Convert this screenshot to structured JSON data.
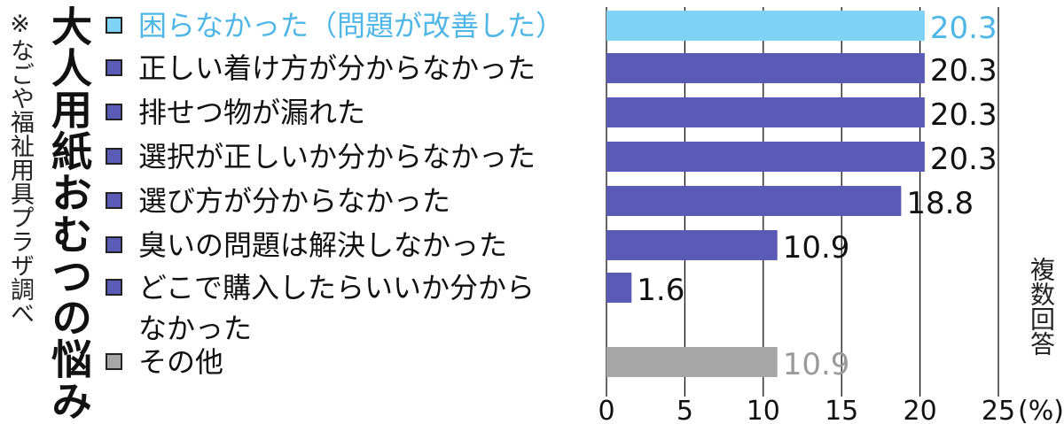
{
  "title": "大人用紙おむつの悩み",
  "source": "※なごや福祉用具プラザ調べ",
  "note": "複数回答",
  "colors": {
    "highlight": "#7fd3f7",
    "main": "#5a5bb7",
    "other": "#a6a6a6",
    "grid": "#000000"
  },
  "chart_data": {
    "type": "bar",
    "orientation": "horizontal",
    "categories": [
      [
        "困らなかった（問題が改善した）"
      ],
      [
        "正しい着け方が分からなかった"
      ],
      [
        "排せつ物が漏れた"
      ],
      [
        "選択が正しいか分からなかった"
      ],
      [
        "選び方が分からなかった"
      ],
      [
        "臭いの問題は解決しなかった"
      ],
      [
        "どこで購入したらいいか分から",
        "なかった"
      ],
      [
        "その他"
      ]
    ],
    "values": [
      20.3,
      20.3,
      20.3,
      20.3,
      18.8,
      10.9,
      1.6,
      10.9
    ],
    "value_labels": [
      "20.3",
      "20.3",
      "20.3",
      "20.3",
      "18.8",
      "10.9",
      "1.6",
      "10.9"
    ],
    "bar_colors": [
      "#7fd3f7",
      "#5a5bb7",
      "#5a5bb7",
      "#5a5bb7",
      "#5a5bb7",
      "#5a5bb7",
      "#5a5bb7",
      "#a6a6a6"
    ],
    "xlim": [
      0,
      25
    ],
    "xticks": [
      0,
      5,
      10,
      15,
      20,
      25
    ],
    "xtick_labels": [
      "0",
      "5",
      "10",
      "15",
      "20",
      "25"
    ],
    "unit": "(%)",
    "grid": true
  }
}
